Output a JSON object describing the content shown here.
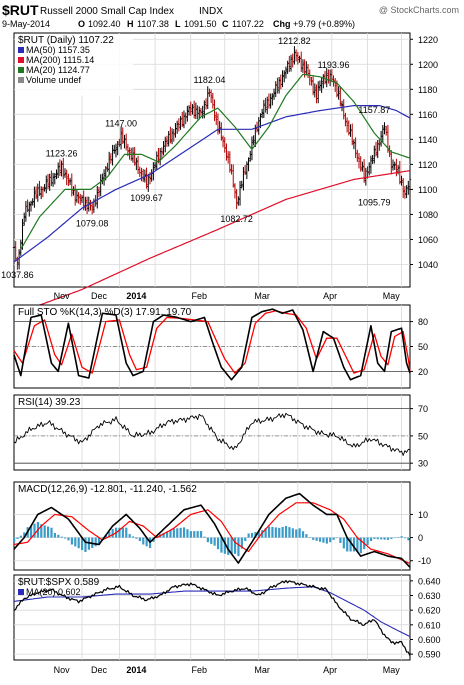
{
  "header": {
    "symbol": "$RUT",
    "name": "Russell 2000 Small Cap Index",
    "exchange": "INDX",
    "watermark": "@ StockCharts.com",
    "date": "9-May-2014",
    "o_label": "O",
    "o_value": "1092.40",
    "h_label": "H",
    "h_value": "1107.38",
    "l_label": "L",
    "l_value": "1091.50",
    "c_label": "C",
    "c_value": "1107.22",
    "chg_label": "Chg",
    "chg_value": "+9.79 (+0.89%)"
  },
  "colors": {
    "price_bar": "#000000",
    "ma50": "#2b2bb8",
    "ma200": "#e0102b",
    "ma20": "#1f7a1f",
    "k_line": "#000000",
    "d_line": "#ff0000",
    "rsi": "#000000",
    "macd": "#000000",
    "signal": "#ff0000",
    "hist": "#3a9bc9",
    "ratio": "#000000",
    "ratio_ma": "#2b2bb8",
    "grid": "#d8d8d8",
    "frame": "#000000"
  },
  "chart_data": [
    {
      "id": "price",
      "type": "ohlc",
      "title": "$RUT (Daily) 1107.22",
      "legend": [
        {
          "name": "MA(50) 1157.35",
          "color": "#2b2bb8"
        },
        {
          "name": "MA(200) 1115.14",
          "color": "#e0102b"
        },
        {
          "name": "MA(20) 1124.77",
          "color": "#1f7a1f"
        },
        {
          "name": "Volume undef",
          "color": "#888888"
        }
      ],
      "ylim": [
        1022,
        1225
      ],
      "yticks": [
        1040,
        1060,
        1080,
        1100,
        1120,
        1140,
        1160,
        1180,
        1200,
        1220
      ],
      "xticks": [
        "Nov",
        "Dec",
        "2014",
        "Feb",
        "Mar",
        "Apr",
        "May"
      ],
      "annotations": [
        {
          "text": "1037.86",
          "t": 2,
          "v": 1037.86,
          "pos": "below"
        },
        {
          "text": "1123.26",
          "t": 28,
          "v": 1123.26,
          "pos": "above"
        },
        {
          "text": "1079.08",
          "t": 46,
          "v": 1079.08,
          "pos": "below"
        },
        {
          "text": "1147.00",
          "t": 63,
          "v": 1147.0,
          "pos": "above"
        },
        {
          "text": "1099.67",
          "t": 78,
          "v": 1099.67,
          "pos": "below"
        },
        {
          "text": "1182.04",
          "t": 115,
          "v": 1182.04,
          "pos": "above"
        },
        {
          "text": "1082.72",
          "t": 131,
          "v": 1082.72,
          "pos": "below"
        },
        {
          "text": "1212.82",
          "t": 165,
          "v": 1212.82,
          "pos": "above"
        },
        {
          "text": "1193.96",
          "t": 188,
          "v": 1193.96,
          "pos": "above"
        },
        {
          "text": "1157.87",
          "t": 212,
          "v": 1157.87,
          "pos": "above"
        },
        {
          "text": "1095.79",
          "t": 212,
          "v": 1095.79,
          "pos": "below"
        }
      ],
      "close_anchors": [
        [
          0,
          1050
        ],
        [
          2,
          1040
        ],
        [
          6,
          1080
        ],
        [
          12,
          1095
        ],
        [
          20,
          1105
        ],
        [
          28,
          1118
        ],
        [
          36,
          1095
        ],
        [
          46,
          1085
        ],
        [
          55,
          1120
        ],
        [
          63,
          1142
        ],
        [
          72,
          1120
        ],
        [
          78,
          1105
        ],
        [
          88,
          1135
        ],
        [
          96,
          1150
        ],
        [
          104,
          1165
        ],
        [
          110,
          1160
        ],
        [
          115,
          1178
        ],
        [
          120,
          1150
        ],
        [
          126,
          1125
        ],
        [
          131,
          1090
        ],
        [
          138,
          1125
        ],
        [
          145,
          1160
        ],
        [
          152,
          1175
        ],
        [
          158,
          1190
        ],
        [
          165,
          1208
        ],
        [
          172,
          1195
        ],
        [
          178,
          1175
        ],
        [
          182,
          1190
        ],
        [
          188,
          1188
        ],
        [
          194,
          1160
        ],
        [
          200,
          1135
        ],
        [
          206,
          1110
        ],
        [
          212,
          1128
        ],
        [
          218,
          1150
        ],
        [
          222,
          1120
        ],
        [
          226,
          1115
        ],
        [
          230,
          1095
        ],
        [
          233,
          1107
        ]
      ],
      "ma50_anchors": [
        [
          0,
          1042
        ],
        [
          20,
          1062
        ],
        [
          40,
          1085
        ],
        [
          60,
          1100
        ],
        [
          80,
          1112
        ],
        [
          100,
          1130
        ],
        [
          120,
          1148
        ],
        [
          140,
          1148
        ],
        [
          160,
          1158
        ],
        [
          180,
          1163
        ],
        [
          200,
          1167
        ],
        [
          215,
          1167
        ],
        [
          225,
          1163
        ],
        [
          233,
          1157
        ]
      ],
      "ma200_anchors": [
        [
          0,
          1000
        ],
        [
          40,
          1020
        ],
        [
          80,
          1045
        ],
        [
          120,
          1068
        ],
        [
          160,
          1092
        ],
        [
          200,
          1108
        ],
        [
          233,
          1115
        ]
      ],
      "ma20_anchors": [
        [
          4,
          1052
        ],
        [
          15,
          1078
        ],
        [
          30,
          1100
        ],
        [
          45,
          1100
        ],
        [
          55,
          1110
        ],
        [
          65,
          1128
        ],
        [
          75,
          1128
        ],
        [
          85,
          1122
        ],
        [
          95,
          1135
        ],
        [
          110,
          1158
        ],
        [
          120,
          1165
        ],
        [
          130,
          1150
        ],
        [
          140,
          1132
        ],
        [
          150,
          1150
        ],
        [
          160,
          1175
        ],
        [
          170,
          1192
        ],
        [
          180,
          1190
        ],
        [
          190,
          1185
        ],
        [
          200,
          1170
        ],
        [
          212,
          1145
        ],
        [
          222,
          1130
        ],
        [
          233,
          1125
        ]
      ]
    },
    {
      "id": "stoch",
      "type": "line",
      "title": "Full STO %K(14,3) %D(3) 17.91, 19.70",
      "series": [
        {
          "name": "%K",
          "color": "#000000"
        },
        {
          "name": "%D",
          "color": "#ff0000"
        }
      ],
      "ylim": [
        0,
        100
      ],
      "yticks": [
        20,
        50,
        80
      ],
      "k_anchors": [
        [
          0,
          40
        ],
        [
          4,
          15
        ],
        [
          10,
          85
        ],
        [
          16,
          88
        ],
        [
          22,
          30
        ],
        [
          26,
          20
        ],
        [
          32,
          78
        ],
        [
          38,
          15
        ],
        [
          44,
          12
        ],
        [
          52,
          90
        ],
        [
          60,
          88
        ],
        [
          66,
          30
        ],
        [
          70,
          15
        ],
        [
          76,
          20
        ],
        [
          82,
          80
        ],
        [
          88,
          88
        ],
        [
          96,
          85
        ],
        [
          104,
          80
        ],
        [
          112,
          85
        ],
        [
          116,
          60
        ],
        [
          122,
          25
        ],
        [
          128,
          10
        ],
        [
          134,
          25
        ],
        [
          140,
          85
        ],
        [
          146,
          92
        ],
        [
          152,
          95
        ],
        [
          158,
          90
        ],
        [
          164,
          94
        ],
        [
          170,
          70
        ],
        [
          176,
          20
        ],
        [
          182,
          68
        ],
        [
          188,
          60
        ],
        [
          194,
          25
        ],
        [
          198,
          10
        ],
        [
          204,
          15
        ],
        [
          210,
          75
        ],
        [
          214,
          30
        ],
        [
          218,
          20
        ],
        [
          222,
          68
        ],
        [
          228,
          72
        ],
        [
          231,
          30
        ],
        [
          233,
          18
        ]
      ],
      "d_anchors": [
        [
          0,
          45
        ],
        [
          5,
          30
        ],
        [
          12,
          75
        ],
        [
          18,
          82
        ],
        [
          24,
          40
        ],
        [
          28,
          28
        ],
        [
          34,
          65
        ],
        [
          40,
          25
        ],
        [
          46,
          18
        ],
        [
          54,
          80
        ],
        [
          62,
          82
        ],
        [
          68,
          40
        ],
        [
          72,
          22
        ],
        [
          78,
          25
        ],
        [
          84,
          72
        ],
        [
          90,
          85
        ],
        [
          98,
          84
        ],
        [
          106,
          82
        ],
        [
          114,
          80
        ],
        [
          118,
          62
        ],
        [
          124,
          35
        ],
        [
          130,
          18
        ],
        [
          136,
          30
        ],
        [
          142,
          78
        ],
        [
          148,
          90
        ],
        [
          154,
          93
        ],
        [
          160,
          90
        ],
        [
          166,
          88
        ],
        [
          172,
          72
        ],
        [
          178,
          35
        ],
        [
          184,
          60
        ],
        [
          190,
          60
        ],
        [
          196,
          35
        ],
        [
          200,
          18
        ],
        [
          206,
          22
        ],
        [
          212,
          65
        ],
        [
          216,
          38
        ],
        [
          220,
          28
        ],
        [
          224,
          62
        ],
        [
          229,
          68
        ],
        [
          232,
          35
        ],
        [
          233,
          20
        ]
      ]
    },
    {
      "id": "rsi",
      "type": "line",
      "title": "RSI(14) 39.23",
      "ylim": [
        25,
        80
      ],
      "yticks": [
        30,
        50,
        70
      ],
      "rsi_anchors": [
        [
          0,
          45
        ],
        [
          10,
          55
        ],
        [
          20,
          60
        ],
        [
          30,
          52
        ],
        [
          40,
          45
        ],
        [
          50,
          58
        ],
        [
          60,
          62
        ],
        [
          70,
          50
        ],
        [
          80,
          52
        ],
        [
          90,
          60
        ],
        [
          100,
          62
        ],
        [
          110,
          65
        ],
        [
          120,
          48
        ],
        [
          130,
          40
        ],
        [
          140,
          60
        ],
        [
          150,
          62
        ],
        [
          160,
          66
        ],
        [
          170,
          58
        ],
        [
          180,
          52
        ],
        [
          190,
          50
        ],
        [
          200,
          42
        ],
        [
          210,
          48
        ],
        [
          220,
          42
        ],
        [
          228,
          38
        ],
        [
          233,
          39
        ]
      ]
    },
    {
      "id": "macd",
      "type": "line",
      "title": "MACD(12,26,9) -12.801, -11.240, -1.562",
      "series": [
        {
          "name": "MACD",
          "color": "#000000"
        },
        {
          "name": "Signal",
          "color": "#ff0000"
        },
        {
          "name": "Histogram",
          "color": "#3a9bc9"
        }
      ],
      "ylim": [
        -14,
        24
      ],
      "yticks": [
        -10,
        0,
        10
      ],
      "macd_anchors": [
        [
          0,
          -5
        ],
        [
          6,
          0
        ],
        [
          14,
          10
        ],
        [
          22,
          13
        ],
        [
          32,
          8
        ],
        [
          42,
          -2
        ],
        [
          50,
          -3
        ],
        [
          58,
          5
        ],
        [
          66,
          10
        ],
        [
          74,
          4
        ],
        [
          80,
          -2
        ],
        [
          90,
          5
        ],
        [
          100,
          12
        ],
        [
          110,
          14
        ],
        [
          118,
          6
        ],
        [
          126,
          -5
        ],
        [
          132,
          -11
        ],
        [
          140,
          -2
        ],
        [
          150,
          10
        ],
        [
          160,
          17
        ],
        [
          168,
          19
        ],
        [
          176,
          14
        ],
        [
          184,
          10
        ],
        [
          190,
          10
        ],
        [
          196,
          0
        ],
        [
          204,
          -8
        ],
        [
          212,
          -6
        ],
        [
          220,
          -8
        ],
        [
          228,
          -9
        ],
        [
          233,
          -12.8
        ]
      ],
      "signal_anchors": [
        [
          0,
          -3
        ],
        [
          8,
          -2
        ],
        [
          16,
          5
        ],
        [
          24,
          10
        ],
        [
          34,
          9
        ],
        [
          44,
          3
        ],
        [
          52,
          -1
        ],
        [
          60,
          2
        ],
        [
          68,
          7
        ],
        [
          76,
          5
        ],
        [
          84,
          0
        ],
        [
          94,
          4
        ],
        [
          104,
          10
        ],
        [
          114,
          12
        ],
        [
          122,
          7
        ],
        [
          130,
          -2
        ],
        [
          138,
          -6
        ],
        [
          146,
          2
        ],
        [
          156,
          10
        ],
        [
          166,
          15
        ],
        [
          176,
          15
        ],
        [
          186,
          12
        ],
        [
          194,
          8
        ],
        [
          202,
          0
        ],
        [
          210,
          -5
        ],
        [
          220,
          -7
        ],
        [
          233,
          -11.2
        ]
      ]
    },
    {
      "id": "ratio",
      "type": "line",
      "title": "$RUT:$SPX 0.589",
      "series": [
        {
          "name": "$RUT:$SPX",
          "color": "#000000"
        },
        {
          "name": "MA(20) 0.602",
          "color": "#2b2bb8"
        }
      ],
      "ylim": [
        0.586,
        0.644
      ],
      "yticks": [
        0.59,
        0.6,
        0.61,
        0.62,
        0.63,
        0.64
      ],
      "xticks": [
        "Nov",
        "Dec",
        "2014",
        "Feb",
        "Mar",
        "Apr",
        "May"
      ],
      "ratio_anchors": [
        [
          0,
          0.62
        ],
        [
          6,
          0.628
        ],
        [
          14,
          0.632
        ],
        [
          22,
          0.634
        ],
        [
          30,
          0.629
        ],
        [
          38,
          0.626
        ],
        [
          46,
          0.63
        ],
        [
          54,
          0.634
        ],
        [
          62,
          0.636
        ],
        [
          70,
          0.63
        ],
        [
          78,
          0.627
        ],
        [
          86,
          0.63
        ],
        [
          94,
          0.636
        ],
        [
          104,
          0.638
        ],
        [
          112,
          0.634
        ],
        [
          120,
          0.63
        ],
        [
          128,
          0.633
        ],
        [
          136,
          0.635
        ],
        [
          144,
          0.63
        ],
        [
          152,
          0.636
        ],
        [
          160,
          0.64
        ],
        [
          168,
          0.638
        ],
        [
          176,
          0.636
        ],
        [
          184,
          0.634
        ],
        [
          190,
          0.624
        ],
        [
          198,
          0.614
        ],
        [
          206,
          0.61
        ],
        [
          212,
          0.614
        ],
        [
          216,
          0.606
        ],
        [
          222,
          0.598
        ],
        [
          228,
          0.598
        ],
        [
          233,
          0.589
        ]
      ],
      "ratio_ma_anchors": [
        [
          0,
          0.626
        ],
        [
          20,
          0.629
        ],
        [
          40,
          0.629
        ],
        [
          60,
          0.631
        ],
        [
          80,
          0.631
        ],
        [
          100,
          0.633
        ],
        [
          120,
          0.633
        ],
        [
          140,
          0.633
        ],
        [
          160,
          0.635
        ],
        [
          176,
          0.636
        ],
        [
          186,
          0.632
        ],
        [
          196,
          0.626
        ],
        [
          206,
          0.62
        ],
        [
          216,
          0.612
        ],
        [
          226,
          0.606
        ],
        [
          233,
          0.602
        ]
      ]
    }
  ]
}
